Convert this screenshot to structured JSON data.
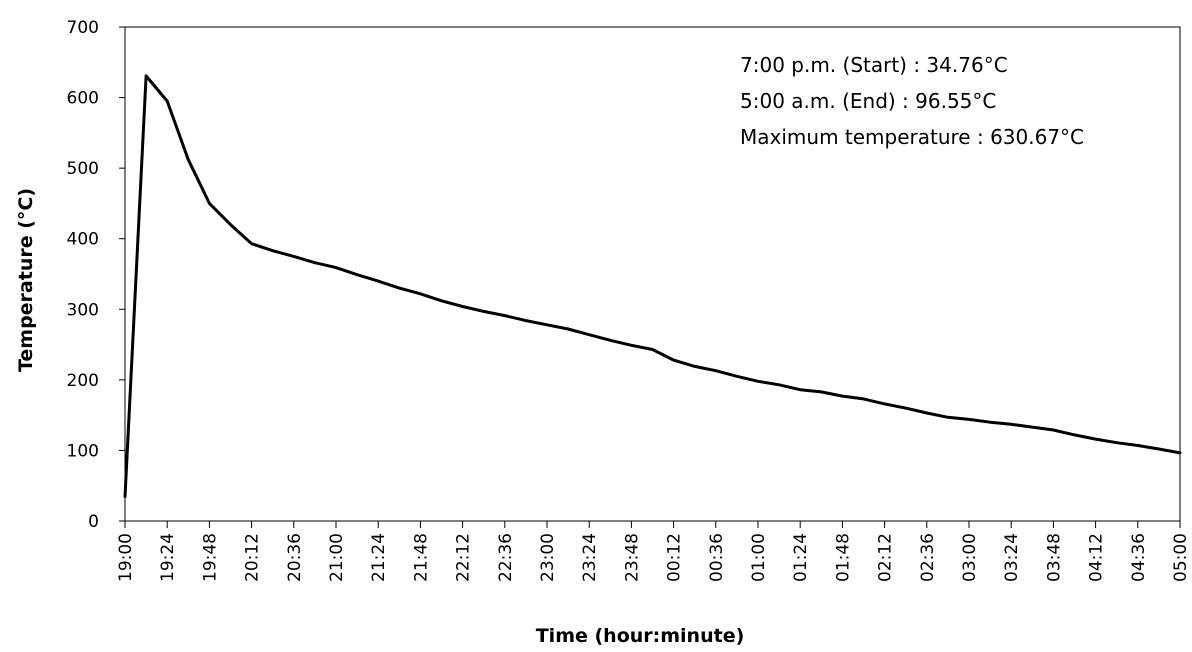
{
  "chart_data": {
    "type": "line",
    "title": "",
    "xlabel": "Time (hour:minute)",
    "ylabel": "Temperature (°C)",
    "ylim": [
      0,
      700
    ],
    "y_ticks": [
      0,
      100,
      200,
      300,
      400,
      500,
      600,
      700
    ],
    "grid": false,
    "line_color": "#000000",
    "x_tick_labels": [
      "19:00",
      "19:24",
      "19:48",
      "20:12",
      "20:36",
      "21:00",
      "21:24",
      "21:48",
      "22:12",
      "22:36",
      "23:00",
      "23:24",
      "23:48",
      "00:12",
      "00:36",
      "01:00",
      "01:24",
      "01:48",
      "02:12",
      "02:36",
      "03:00",
      "03:24",
      "03:48",
      "04:12",
      "04:36",
      "05:00"
    ],
    "x_range_minutes": [
      0,
      600
    ],
    "series": [
      {
        "x": [
          0,
          12,
          24,
          36,
          48,
          60,
          72,
          84,
          96,
          108,
          120,
          132,
          144,
          156,
          168,
          180,
          192,
          204,
          216,
          228,
          240,
          252,
          264,
          276,
          288,
          300,
          312,
          324,
          336,
          348,
          360,
          372,
          384,
          396,
          408,
          420,
          432,
          444,
          456,
          468,
          480,
          492,
          504,
          516,
          528,
          540,
          552,
          564,
          576,
          588,
          600
        ],
        "values": [
          34.76,
          630.67,
          595,
          512,
          450,
          420,
          393,
          383,
          375,
          366,
          359,
          349,
          340,
          330,
          322,
          312,
          304,
          297,
          291,
          284,
          278,
          272,
          264,
          256,
          249,
          243,
          228,
          219,
          213,
          205,
          198,
          193,
          186,
          183,
          177,
          173,
          166,
          160,
          153,
          147,
          144,
          140,
          137,
          133,
          129,
          122,
          116,
          111,
          107,
          102,
          96.55
        ]
      }
    ],
    "annotations": [
      "7:00 p.m. (Start) : 34.76°C",
      "5:00 a.m. (End) : 96.55°C",
      "Maximum temperature : 630.67°C"
    ]
  }
}
